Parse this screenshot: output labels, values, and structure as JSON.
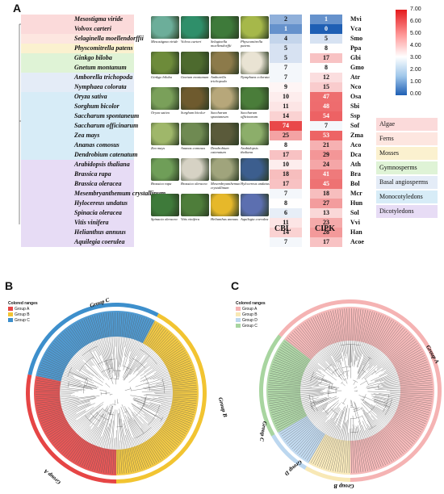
{
  "panels": {
    "a": "A",
    "b": "B",
    "c": "C"
  },
  "species": [
    {
      "name": "Mesostigma viride",
      "abbr": "Mvi",
      "cbl": "2",
      "cipk": "1",
      "group": "Algae"
    },
    {
      "name": "Volvox carteri",
      "abbr": "Vca",
      "cbl": "1",
      "cipk": "0",
      "group": "Algae"
    },
    {
      "name": "Selaginella moellendorffii",
      "abbr": "Smo",
      "cbl": "4",
      "cipk": "5",
      "group": "Ferns"
    },
    {
      "name": "Physcomitrella patens",
      "abbr": "Ppa",
      "cbl": "5",
      "cipk": "8",
      "group": "Mosses"
    },
    {
      "name": "Ginkgo biloba",
      "abbr": "Gbi",
      "cbl": "5",
      "cipk": "17",
      "group": "Gymnosperms"
    },
    {
      "name": "Gnetum montanum",
      "abbr": "Gmo",
      "cbl": "7",
      "cipk": "8",
      "group": "Gymnosperms"
    },
    {
      "name": "Amborella trichopoda",
      "abbr": "Atr",
      "cbl": "7",
      "cipk": "12",
      "group": "Basal angiosperms"
    },
    {
      "name": "Nymphaea colorata",
      "abbr": "Nco",
      "cbl": "9",
      "cipk": "15",
      "group": "Basal angiosperms"
    },
    {
      "name": "Oryza sativa",
      "abbr": "Osa",
      "cbl": "10",
      "cipk": "47",
      "group": "Monocotyledons"
    },
    {
      "name": "Sorghum bicolor",
      "abbr": "Sbi",
      "cbl": "11",
      "cipk": "48",
      "group": "Monocotyledons"
    },
    {
      "name": "Saccharum spontaneum",
      "abbr": "Ssp",
      "cbl": "14",
      "cipk": "54",
      "group": "Monocotyledons"
    },
    {
      "name": "Saccharum officinarum",
      "abbr": "Sof",
      "cbl": "74",
      "cipk": "7",
      "group": "Monocotyledons"
    },
    {
      "name": "Zea mays",
      "abbr": "Zma",
      "cbl": "25",
      "cipk": "53",
      "group": "Monocotyledons"
    },
    {
      "name": "Ananas comosus",
      "abbr": "Aco",
      "cbl": "8",
      "cipk": "21",
      "group": "Monocotyledons"
    },
    {
      "name": "Dendrobium catenatum",
      "abbr": "Dca",
      "cbl": "17",
      "cipk": "29",
      "group": "Monocotyledons"
    },
    {
      "name": "Arabidopsis thaliana",
      "abbr": "Ath",
      "cbl": "10",
      "cipk": "24",
      "group": "Dicotyledons"
    },
    {
      "name": "Brassica rapa",
      "abbr": "Bra",
      "cbl": "18",
      "cipk": "41",
      "group": "Dicotyledons"
    },
    {
      "name": "Brassica oleracea",
      "abbr": "Bol",
      "cbl": "17",
      "cipk": "45",
      "group": "Dicotyledons"
    },
    {
      "name": "Mesembryanthemum crystallinum",
      "abbr": "Mcr",
      "cbl": "7",
      "cipk": "18",
      "group": "Dicotyledons"
    },
    {
      "name": "Hylocereus undatus",
      "abbr": "Hun",
      "cbl": "8",
      "cipk": "27",
      "group": "Dicotyledons"
    },
    {
      "name": "Spinacia oleracea",
      "abbr": "Sol",
      "cbl": "6",
      "cipk": "13",
      "group": "Dicotyledons"
    },
    {
      "name": "Vitis vinifera",
      "abbr": "Vvi",
      "cbl": "11",
      "cipk": "23",
      "group": "Dicotyledons"
    },
    {
      "name": "Helianthus annuus",
      "abbr": "Han",
      "cbl": "14",
      "cipk": "28",
      "group": "Dicotyledons"
    },
    {
      "name": "Aquilegia coerulea",
      "abbr": "Acoe",
      "cbl": "7",
      "cipk": "17",
      "group": "Dicotyledons"
    }
  ],
  "photo_captions": [
    [
      "Mesostigma viride",
      "Volvox carteri",
      "Selaginella moellendorffii",
      "Physcomitrella patens"
    ],
    [
      "Ginkgo biloba",
      "Gnetum montanum",
      "Amborella trichopoda",
      "Nymphaea colorata"
    ],
    [
      "Oryza sativa",
      "Sorghum bicolor",
      "Saccharum spontaneum",
      "Saccharum officinarum"
    ],
    [
      "Zea mays",
      "Ananas comosus",
      "Dendrobium catenatum",
      "Arabidopsis thaliana"
    ],
    [
      "Brassica rapa",
      "Brassica oleracea",
      "Mesembryanthemum crystallinum",
      "Hylocereus undatus"
    ],
    [
      "Spinacia oleracea",
      "Vitis vinifera",
      "Helianthus annuus",
      "Aquilegia coerulea"
    ]
  ],
  "column_headers": {
    "cbl": "CBL",
    "cipk": "CIPK"
  },
  "color_scale": {
    "ticks": [
      "7.00",
      "6.00",
      "5.00",
      "4.00",
      "3.00",
      "2.00",
      "1.00",
      "0.00"
    ],
    "high": "#e41a1c",
    "mid": "#ffffff",
    "low": "#1f5fb4"
  },
  "groups": [
    {
      "label": "Algae",
      "color": "#fbdada"
    },
    {
      "label": "Ferns",
      "color": "#fde6e0"
    },
    {
      "label": "Mosses",
      "color": "#fbf1cf"
    },
    {
      "label": "Gymnosperms",
      "color": "#dff3d6"
    },
    {
      "label": "Basal angiosperms",
      "color": "#e4ecf7"
    },
    {
      "label": "Monocotyledons",
      "color": "#d7ecf7"
    },
    {
      "label": "Dicotyledons",
      "color": "#e7dcf5"
    }
  ],
  "panel_b": {
    "legend_title": "Colored ranges",
    "ranges": [
      {
        "label": "Group A",
        "color": "#e64545"
      },
      {
        "label": "Group B",
        "color": "#f2c431"
      },
      {
        "label": "Group C",
        "color": "#3d8fcc"
      }
    ],
    "arc_labels": [
      "Group C",
      "Group B",
      "Group A"
    ]
  },
  "panel_c": {
    "legend_title": "Colored ranges",
    "ranges": [
      {
        "label": "Group A",
        "color": "#f5b3b3"
      },
      {
        "label": "Group B",
        "color": "#f8e8b5"
      },
      {
        "label": "Group D",
        "color": "#bcd7ef"
      },
      {
        "label": "Group C",
        "color": "#a8d5a0"
      }
    ],
    "arc_labels": [
      "Group A",
      "Group C",
      "Group D",
      "Group B"
    ]
  }
}
